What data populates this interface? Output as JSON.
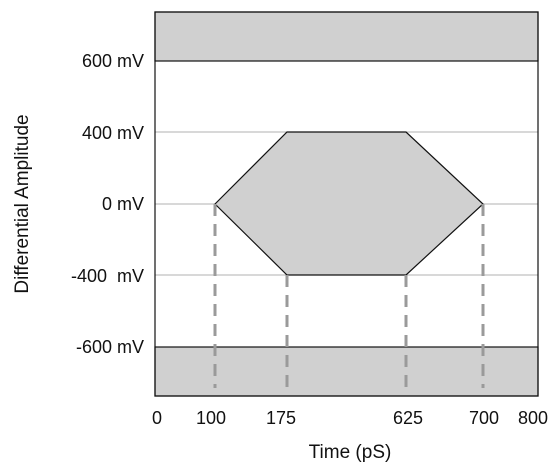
{
  "diagram": {
    "x_axis": {
      "label": "Time (pS)",
      "ticks": [
        "0",
        "100",
        "175",
        "625",
        "700",
        "800"
      ],
      "range": [
        0,
        800
      ]
    },
    "y_axis": {
      "label": "Differential Amplitude",
      "ticks": [
        "600 mV",
        "400 mV",
        "0 mV",
        "-400  mV",
        "-600 mV"
      ]
    },
    "mask": {
      "upper_limit_mV": 600,
      "lower_limit_mV": -600,
      "eye_polygon": [
        {
          "t_pS": 100,
          "v_mV": 0
        },
        {
          "t_pS": 175,
          "v_mV": 400
        },
        {
          "t_pS": 625,
          "v_mV": 400
        },
        {
          "t_pS": 700,
          "v_mV": 0
        },
        {
          "t_pS": 625,
          "v_mV": -400
        },
        {
          "t_pS": 175,
          "v_mV": -400
        }
      ],
      "timing_markers_pS": [
        100,
        175,
        625,
        700
      ]
    },
    "colors": {
      "mask_fill": "#d0d0d0",
      "outline": "#111111",
      "gridline": "#b0b0b0",
      "marker": "#9a9a9a"
    }
  }
}
